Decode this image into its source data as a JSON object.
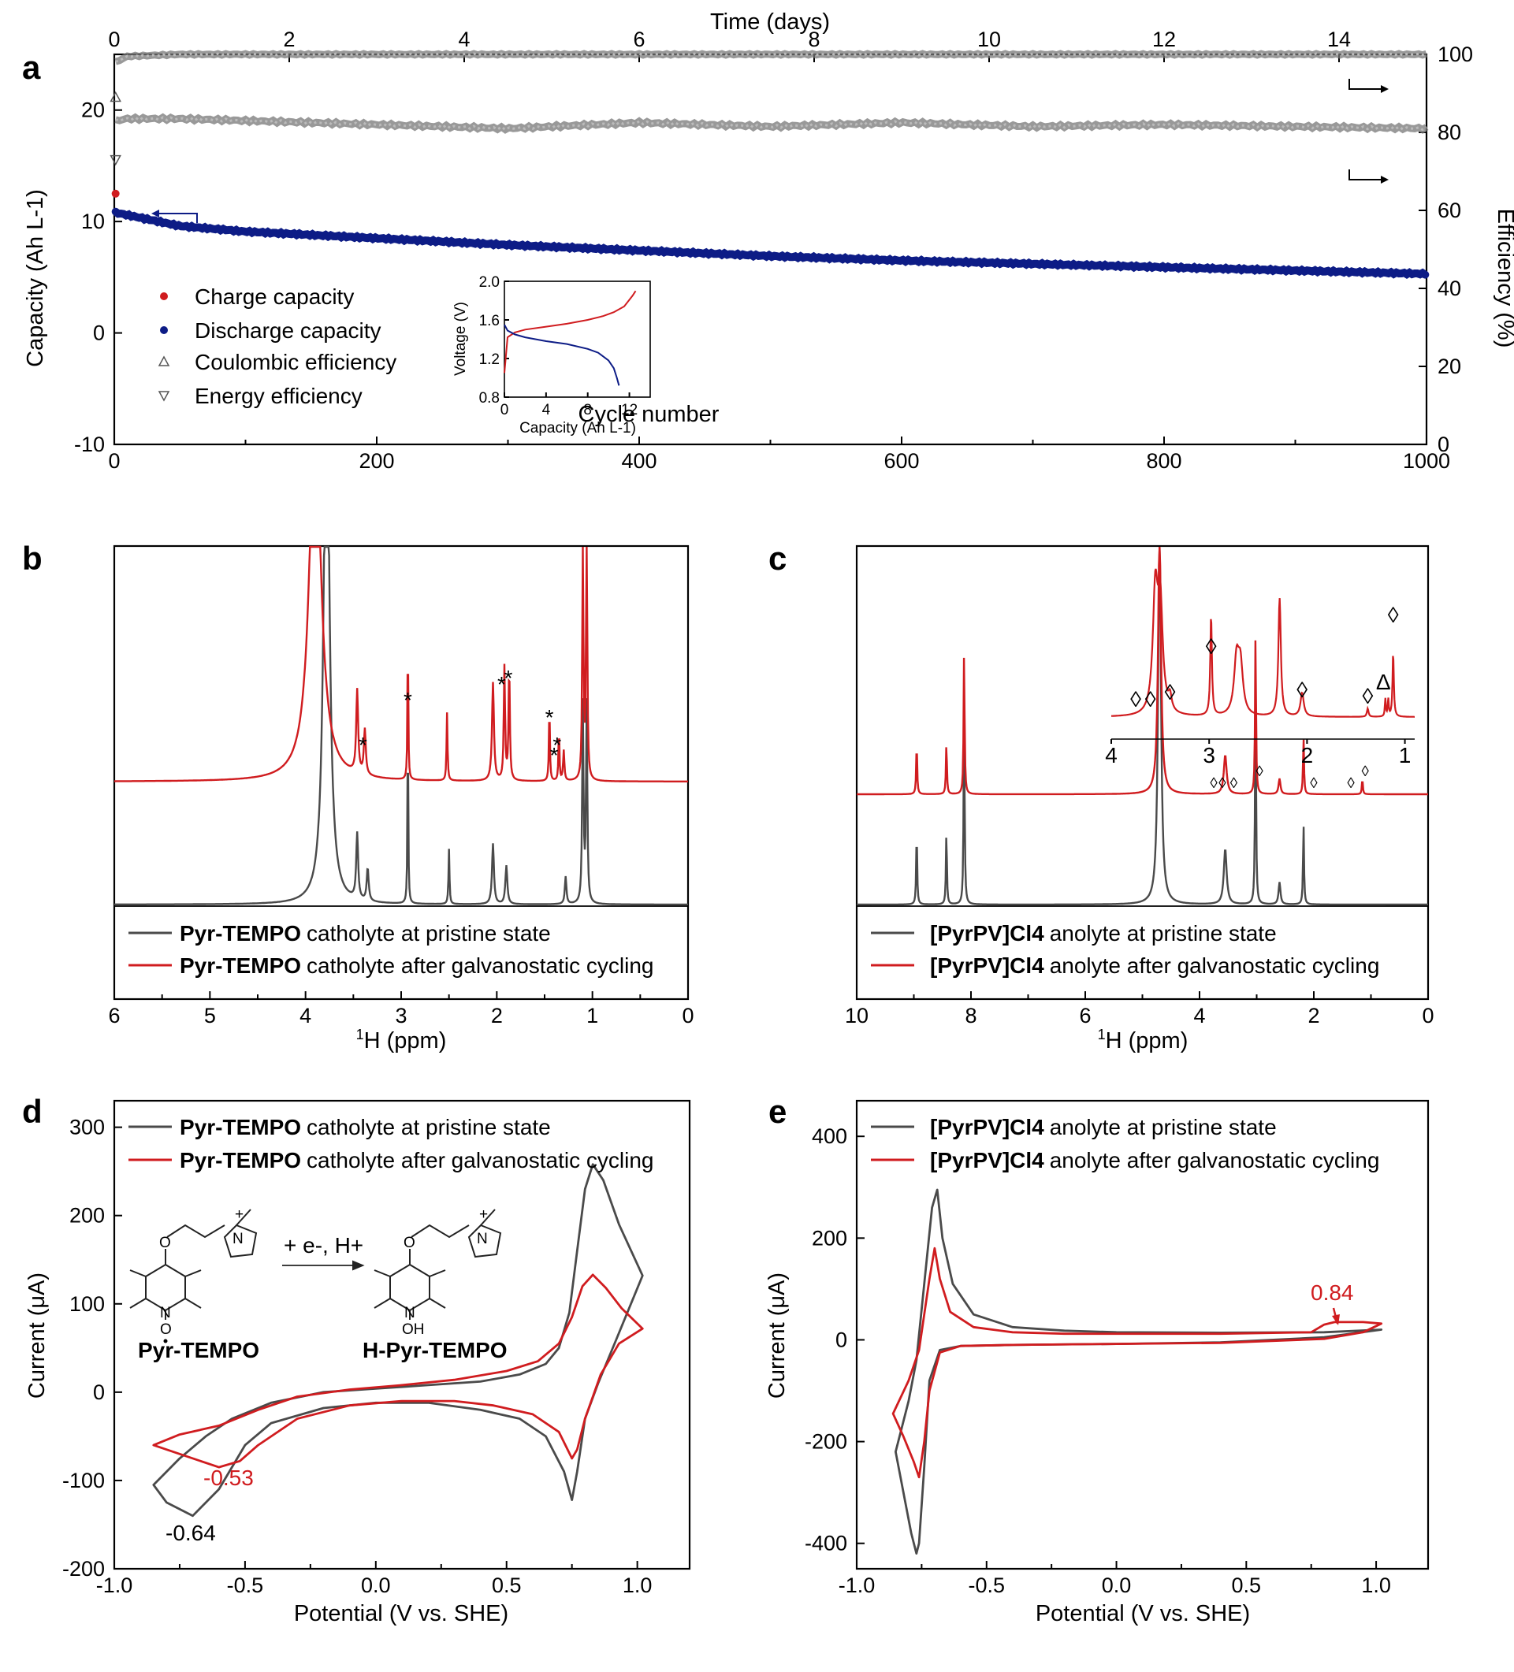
{
  "panels": {
    "a": "a",
    "b": "b",
    "c": "c",
    "d": "d",
    "e": "e"
  },
  "chart_data": [
    {
      "id": "a",
      "type": "scatter",
      "xlabel": "Cycle number",
      "x_top_label": "Time (days)",
      "ylabel": "Capacity (Ah L-1)",
      "y2label": "Efficiency (%)",
      "xlim": [
        0,
        1000
      ],
      "x_ticks": [
        "0",
        "200",
        "400",
        "600",
        "800",
        "1000"
      ],
      "top_lim": [
        0,
        15
      ],
      "top_ticks": [
        "0",
        "2",
        "4",
        "6",
        "8",
        "10",
        "12",
        "14"
      ],
      "ylim": [
        -10,
        25
      ],
      "y_ticks": [
        "-10",
        "0",
        "10",
        "20"
      ],
      "y2lim": [
        0,
        100
      ],
      "y2_ticks": [
        "0",
        "20",
        "40",
        "60",
        "80",
        "100"
      ],
      "colors": {
        "charge": "#d01c1f",
        "discharge": "#0d1c86",
        "efficiency": "#555555"
      },
      "legend": [
        "Charge capacity",
        "Discharge capacity",
        "Coulombic efficiency",
        "Energy efficiency"
      ],
      "series": [
        {
          "name": "Charge capacity",
          "x": [
            1
          ],
          "y": [
            12.5
          ]
        },
        {
          "name": "Discharge capacity",
          "x": [
            1,
            50,
            100,
            200,
            300,
            400,
            500,
            600,
            700,
            800,
            900,
            1000
          ],
          "y": [
            10.8,
            9.6,
            9.1,
            8.5,
            7.9,
            7.4,
            6.9,
            6.5,
            6.2,
            5.9,
            5.6,
            5.3
          ]
        },
        {
          "name": "Coulombic efficiency",
          "x": [
            1,
            10,
            50,
            200,
            500,
            800,
            1000
          ],
          "y": [
            98,
            99.5,
            100,
            100,
            100,
            100,
            100
          ],
          "axis": "right"
        },
        {
          "name": "Energy efficiency",
          "x": [
            1,
            10,
            50,
            150,
            250,
            300,
            400,
            500,
            600,
            700,
            800,
            900,
            1000
          ],
          "y": [
            83,
            83.5,
            83.5,
            82.5,
            81.5,
            81.0,
            82.5,
            81.5,
            82.5,
            81.5,
            82.0,
            81.5,
            81.0
          ],
          "axis": "right"
        }
      ],
      "outlier_points": [
        {
          "series": "Coulombic efficiency",
          "x": 1,
          "y": 89
        },
        {
          "series": "Energy efficiency",
          "x": 1,
          "y": 73
        }
      ],
      "inset": {
        "xlabel": "Capacity (Ah L-1)",
        "ylabel": "Voltage (V)",
        "xlim": [
          0,
          14
        ],
        "x_ticks": [
          "0",
          "4",
          "8",
          "12"
        ],
        "ylim": [
          0.8,
          2.0
        ],
        "y_ticks": [
          "0.8",
          "1.2",
          "1.6",
          "2.0"
        ],
        "charge": {
          "x": [
            0,
            0.3,
            1,
            2,
            4,
            6,
            8,
            9.5,
            10.5,
            11.5,
            12.3,
            12.6
          ],
          "y": [
            1.05,
            1.42,
            1.47,
            1.5,
            1.53,
            1.56,
            1.6,
            1.64,
            1.68,
            1.74,
            1.85,
            1.9
          ]
        },
        "discharge": {
          "x": [
            0,
            0.3,
            1,
            2,
            4,
            6,
            8,
            9,
            10,
            10.5,
            10.8,
            11.0
          ],
          "y": [
            1.55,
            1.49,
            1.45,
            1.42,
            1.38,
            1.35,
            1.3,
            1.26,
            1.18,
            1.1,
            1.0,
            0.92
          ]
        }
      }
    },
    {
      "id": "b",
      "type": "line",
      "xlabel": "1H (ppm)",
      "xlim": [
        6,
        0
      ],
      "x_ticks": [
        "6",
        "5",
        "4",
        "3",
        "2",
        "1",
        "0"
      ],
      "legend_bold": "Pyr-TEMPO",
      "legend": [
        "catholyte at pristine state",
        "catholyte after galvanostatic cycling"
      ],
      "series": [
        {
          "name": "pristine",
          "color": "#4a4a4a",
          "peaks": [
            [
              3.78,
              1.0,
              0.035
            ],
            [
              3.46,
              0.12,
              0.012
            ],
            [
              3.35,
              0.06,
              0.012
            ],
            [
              2.93,
              0.34,
              0.005
            ],
            [
              2.5,
              0.1,
              0.006
            ],
            [
              2.04,
              0.11,
              0.012
            ],
            [
              1.9,
              0.07,
              0.012
            ],
            [
              1.28,
              0.05,
              0.01
            ],
            [
              1.1,
              0.36,
              0.008
            ],
            [
              1.06,
              0.36,
              0.008
            ]
          ]
        },
        {
          "name": "cycled",
          "color": "#d01c1f",
          "peaks": [
            [
              3.9,
              1.0,
              0.07
            ],
            [
              3.46,
              0.22,
              0.012
            ],
            [
              3.38,
              0.12,
              0.012
            ],
            [
              2.93,
              0.4,
              0.005
            ],
            [
              2.52,
              0.18,
              0.006
            ],
            [
              2.04,
              0.26,
              0.012
            ],
            [
              1.92,
              0.3,
              0.008
            ],
            [
              1.87,
              0.3,
              0.008
            ],
            [
              1.45,
              0.2,
              0.006
            ],
            [
              1.35,
              0.14,
              0.006
            ],
            [
              1.3,
              0.08,
              0.008
            ],
            [
              1.1,
              0.68,
              0.007
            ],
            [
              1.06,
              0.74,
              0.007
            ]
          ]
        }
      ],
      "annotations": [
        "*",
        "*",
        "*",
        "*",
        "*",
        "*",
        "*"
      ]
    },
    {
      "id": "c",
      "type": "line",
      "xlabel": "1H (ppm)",
      "xlim": [
        10,
        0
      ],
      "x_ticks": [
        "10",
        "8",
        "6",
        "4",
        "2",
        "0"
      ],
      "legend_bold": "[PyrPV]Cl4",
      "legend": [
        "anolyte at pristine state",
        "anolyte after galvanostatic cycling"
      ],
      "series": [
        {
          "name": "pristine",
          "color": "#4a4a4a",
          "peaks": [
            [
              8.95,
              0.2,
              0.01
            ],
            [
              8.43,
              0.2,
              0.01
            ],
            [
              8.12,
              0.55,
              0.01
            ],
            [
              4.7,
              1.0,
              0.03
            ],
            [
              3.55,
              0.15,
              0.03
            ],
            [
              3.02,
              0.62,
              0.01
            ],
            [
              2.6,
              0.06,
              0.02
            ],
            [
              2.18,
              0.22,
              0.01
            ]
          ]
        },
        {
          "name": "cycled",
          "color": "#d01c1f",
          "peaks": [
            [
              8.95,
              0.2,
              0.01
            ],
            [
              8.43,
              0.2,
              0.01
            ],
            [
              8.12,
              0.55,
              0.01
            ],
            [
              4.7,
              1.0,
              0.03
            ],
            [
              3.55,
              0.15,
              0.03
            ],
            [
              3.02,
              0.62,
              0.01
            ],
            [
              2.6,
              0.06,
              0.02
            ],
            [
              2.18,
              0.22,
              0.01
            ],
            [
              1.15,
              0.06,
              0.01
            ]
          ]
        }
      ],
      "inset": {
        "x_ticks": [
          "4",
          "3",
          "2",
          "1"
        ],
        "xlim": [
          4,
          0.9
        ]
      },
      "annotations_diamond": "◊",
      "annotations_triangle": "Δ"
    },
    {
      "id": "d",
      "type": "line",
      "xlabel": "Potential (V vs. SHE)",
      "ylabel": "Current (μA)",
      "xlim": [
        -1.0,
        1.2
      ],
      "x_ticks": [
        "-1.0",
        "-0.5",
        "0.0",
        "0.5",
        "1.0"
      ],
      "ylim": [
        -200,
        330
      ],
      "y_ticks": [
        "-200",
        "-100",
        "0",
        "100",
        "200",
        "300"
      ],
      "legend_bold": "Pyr-TEMPO",
      "legend": [
        "catholyte at pristine state",
        "catholyte after galvanostatic cycling"
      ],
      "annotations": [
        "-0.64",
        "-0.53"
      ],
      "scheme": {
        "reaction": "+ e-, H+",
        "reactant": "Pyr-TEMPO",
        "product": "H-Pyr-TEMPO",
        "n_label": "N",
        "o_label": "O",
        "oh_label": "OH",
        "plus": "+"
      },
      "series": [
        {
          "name": "pristine",
          "color": "#4a4a4a",
          "x": [
            -0.85,
            -0.75,
            -0.65,
            -0.55,
            -0.4,
            -0.2,
            0.0,
            0.2,
            0.4,
            0.55,
            0.65,
            0.7,
            0.74,
            0.77,
            0.8,
            0.83,
            0.87,
            0.93,
            1.02,
            0.92,
            0.85,
            0.8,
            0.77,
            0.75,
            0.72,
            0.65,
            0.55,
            0.4,
            0.2,
            0.0,
            -0.2,
            -0.4,
            -0.5,
            -0.6,
            -0.7,
            -0.8,
            -0.85
          ],
          "y": [
            -105,
            -75,
            -50,
            -30,
            -12,
            0,
            4,
            8,
            12,
            20,
            32,
            50,
            90,
            160,
            230,
            258,
            240,
            190,
            132,
            60,
            10,
            -30,
            -90,
            -122,
            -90,
            -50,
            -30,
            -20,
            -12,
            -12,
            -18,
            -35,
            -60,
            -110,
            -140,
            -125,
            -105
          ]
        },
        {
          "name": "cycled",
          "color": "#d01c1f",
          "x": [
            -0.85,
            -0.75,
            -0.6,
            -0.45,
            -0.3,
            -0.1,
            0.1,
            0.3,
            0.5,
            0.62,
            0.7,
            0.75,
            0.79,
            0.83,
            0.88,
            0.94,
            1.02,
            0.93,
            0.86,
            0.8,
            0.77,
            0.75,
            0.7,
            0.6,
            0.45,
            0.3,
            0.1,
            -0.1,
            -0.3,
            -0.45,
            -0.52,
            -0.6,
            -0.75,
            -0.85
          ],
          "y": [
            -60,
            -48,
            -38,
            -20,
            -5,
            3,
            8,
            14,
            24,
            35,
            55,
            85,
            120,
            133,
            118,
            95,
            72,
            55,
            20,
            -30,
            -65,
            -75,
            -45,
            -25,
            -15,
            -10,
            -10,
            -15,
            -30,
            -60,
            -78,
            -85,
            -70,
            -60
          ]
        }
      ]
    },
    {
      "id": "e",
      "type": "line",
      "xlabel": "Potential (V vs. SHE)",
      "ylabel": "Current (μA)",
      "xlim": [
        -1.0,
        1.2
      ],
      "x_ticks": [
        "-1.0",
        "-0.5",
        "0.0",
        "0.5",
        "1.0"
      ],
      "ylim": [
        -450,
        470
      ],
      "y_ticks": [
        "-400",
        "-200",
        "0",
        "200",
        "400"
      ],
      "legend_bold": "[PyrPV]Cl4",
      "legend": [
        "anolyte at pristine state",
        "anolyte after galvanostatic cycling"
      ],
      "annotations": [
        "0.84"
      ],
      "series": [
        {
          "name": "pristine",
          "color": "#4a4a4a",
          "x": [
            -0.85,
            -0.8,
            -0.77,
            -0.75,
            -0.73,
            -0.71,
            -0.69,
            -0.67,
            -0.63,
            -0.55,
            -0.4,
            -0.2,
            0.0,
            0.4,
            0.8,
            1.02,
            0.8,
            0.4,
            0.0,
            -0.4,
            -0.6,
            -0.68,
            -0.72,
            -0.74,
            -0.76,
            -0.77,
            -0.79,
            -0.82,
            -0.85
          ],
          "y": [
            -220,
            -120,
            -40,
            60,
            160,
            260,
            295,
            200,
            110,
            50,
            25,
            18,
            15,
            14,
            15,
            20,
            5,
            -5,
            -8,
            -10,
            -12,
            -20,
            -80,
            -250,
            -400,
            -420,
            -380,
            -300,
            -220
          ]
        },
        {
          "name": "cycled",
          "color": "#d01c1f",
          "x": [
            -0.86,
            -0.8,
            -0.76,
            -0.74,
            -0.72,
            -0.7,
            -0.68,
            -0.64,
            -0.55,
            -0.4,
            -0.2,
            0.0,
            0.4,
            0.75,
            0.8,
            0.84,
            0.95,
            1.02,
            0.95,
            0.8,
            0.4,
            0.0,
            -0.4,
            -0.6,
            -0.68,
            -0.72,
            -0.74,
            -0.76,
            -0.78,
            -0.82,
            -0.86
          ],
          "y": [
            -145,
            -80,
            -20,
            50,
            120,
            180,
            120,
            55,
            25,
            15,
            12,
            12,
            12,
            15,
            30,
            35,
            35,
            32,
            15,
            2,
            -6,
            -8,
            -10,
            -12,
            -25,
            -100,
            -200,
            -270,
            -240,
            -190,
            -145
          ]
        }
      ]
    }
  ]
}
